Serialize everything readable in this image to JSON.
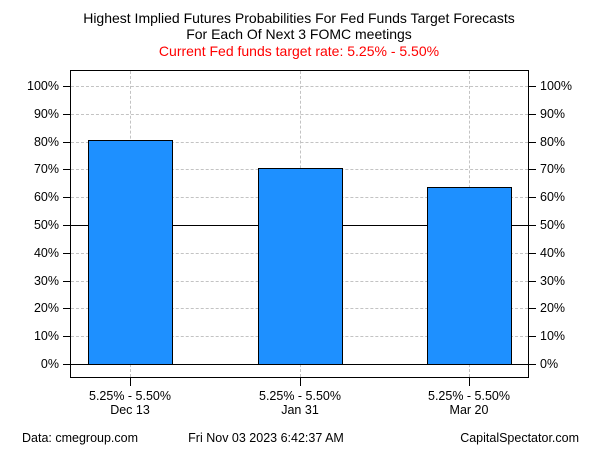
{
  "title": {
    "line1": "Highest Implied Futures Probabilities For Fed Funds Target Forecasts",
    "line2": "For Each Of Next 3 FOMC meetings",
    "subtitle": "Current Fed funds target rate: 5.25% - 5.50%",
    "subtitle_color": "#ff0000"
  },
  "chart_data": {
    "type": "bar",
    "categories": [
      "Dec 13",
      "Jan 31",
      "Mar 20"
    ],
    "category_rate_labels": [
      "5.25% - 5.50%",
      "5.25% - 5.50%",
      "5.25% - 5.50%"
    ],
    "values": [
      80.4,
      70.5,
      63.6
    ],
    "value_unit": "%",
    "ylim": [
      0,
      100
    ],
    "yticks": [
      {
        "value": 0,
        "label": "0%"
      },
      {
        "value": 10,
        "label": "10%"
      },
      {
        "value": 20,
        "label": "20%"
      },
      {
        "value": 30,
        "label": "30%"
      },
      {
        "value": 40,
        "label": "40%"
      },
      {
        "value": 50,
        "label": "50%"
      },
      {
        "value": 60,
        "label": "60%"
      },
      {
        "value": 70,
        "label": "70%"
      },
      {
        "value": 80,
        "label": "80%"
      },
      {
        "value": 90,
        "label": "90%"
      },
      {
        "value": 100,
        "label": "100%"
      }
    ],
    "y_axis_sides": [
      "left",
      "right"
    ],
    "reference_line_value": 50,
    "baseline_value": 0,
    "grid": {
      "horizontal": "dashed at every 10% step",
      "vertical": "dashed at each bar center",
      "color": "#c3c3c3"
    },
    "colors": {
      "bar_fill": "#1e90ff",
      "bar_border": "#000000",
      "axis": "#000000"
    },
    "legend": null
  },
  "footer": {
    "left": "Data: cmegroup.com",
    "center": "Fri Nov 03 2023 6:42:37 AM",
    "right": "CapitalSpectator.com"
  }
}
